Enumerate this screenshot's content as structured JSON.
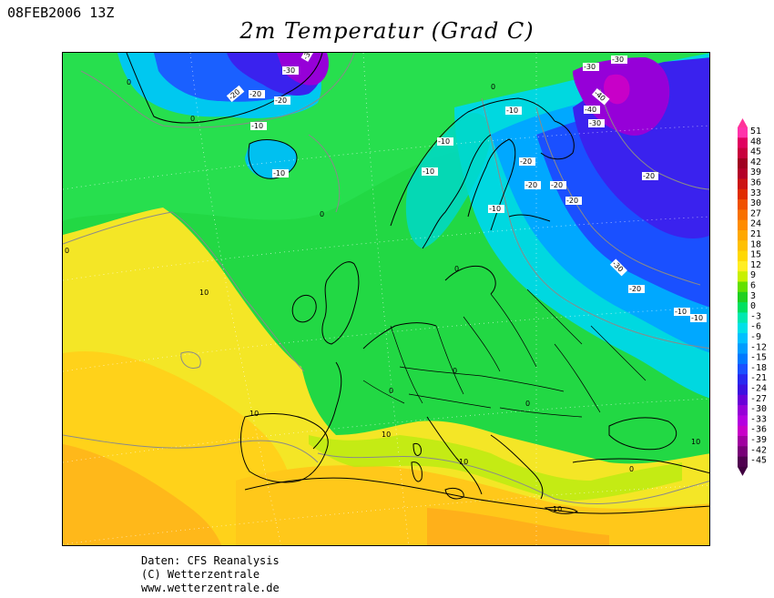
{
  "header": {
    "datestamp": "08FEB2006 13Z",
    "title": "2m Temperatur (Grad C)"
  },
  "credits": {
    "line1": "Daten: CFS Reanalysis",
    "line2": "(C) Wetterzentrale",
    "line3": "www.wetterzentrale.de"
  },
  "legend": {
    "levels": [
      {
        "label": "51",
        "color": "#ff33aa"
      },
      {
        "label": "48",
        "color": "#e0005e"
      },
      {
        "label": "45",
        "color": "#c8003c"
      },
      {
        "label": "42",
        "color": "#a00020"
      },
      {
        "label": "39",
        "color": "#b40028"
      },
      {
        "label": "36",
        "color": "#cc1414"
      },
      {
        "label": "33",
        "color": "#e02c00"
      },
      {
        "label": "30",
        "color": "#f05000"
      },
      {
        "label": "27",
        "color": "#f87000"
      },
      {
        "label": "24",
        "color": "#ff8c00"
      },
      {
        "label": "21",
        "color": "#ffa800"
      },
      {
        "label": "18",
        "color": "#ffc000"
      },
      {
        "label": "15",
        "color": "#ffd800"
      },
      {
        "label": "12",
        "color": "#ffee22"
      },
      {
        "label": "9",
        "color": "#c8f000"
      },
      {
        "label": "6",
        "color": "#64e000"
      },
      {
        "label": "3",
        "color": "#20d020"
      },
      {
        "label": "0",
        "color": "#00e060"
      },
      {
        "label": "-3",
        "color": "#00e8b0"
      },
      {
        "label": "-6",
        "color": "#00e0e8"
      },
      {
        "label": "-9",
        "color": "#00c0ff"
      },
      {
        "label": "-12",
        "color": "#009cff"
      },
      {
        "label": "-15",
        "color": "#0078ff"
      },
      {
        "label": "-18",
        "color": "#1a50ff"
      },
      {
        "label": "-21",
        "color": "#2828f0"
      },
      {
        "label": "-24",
        "color": "#3c10e0"
      },
      {
        "label": "-27",
        "color": "#6a00d8"
      },
      {
        "label": "-30",
        "color": "#9600d8"
      },
      {
        "label": "-33",
        "color": "#b400e0"
      },
      {
        "label": "-36",
        "color": "#c800c8"
      },
      {
        "label": "-39",
        "color": "#a000a0"
      },
      {
        "label": "-42",
        "color": "#780078"
      },
      {
        "label": "-45",
        "color": "#500050"
      }
    ],
    "top_color": "#ff3399",
    "bottom_color": "#400040"
  },
  "map": {
    "contour_labels": [
      {
        "text": "-30"
      },
      {
        "text": "-30"
      },
      {
        "text": "-20"
      },
      {
        "text": "-20"
      },
      {
        "text": "-20"
      },
      {
        "text": "-10"
      },
      {
        "text": "-10"
      },
      {
        "text": "-10"
      },
      {
        "text": "-10"
      },
      {
        "text": "-10"
      },
      {
        "text": "-30"
      },
      {
        "text": "-30"
      },
      {
        "text": "-40"
      },
      {
        "text": "-40"
      },
      {
        "text": "-30"
      },
      {
        "text": "-20"
      },
      {
        "text": "-20"
      },
      {
        "text": "-20"
      },
      {
        "text": "-20"
      },
      {
        "text": "-20"
      },
      {
        "text": "-10"
      },
      {
        "text": "-30"
      },
      {
        "text": "-20"
      },
      {
        "text": "-10"
      },
      {
        "text": "-10"
      },
      {
        "text": "0"
      },
      {
        "text": "0"
      },
      {
        "text": "0"
      },
      {
        "text": "0"
      },
      {
        "text": "0"
      },
      {
        "text": "0"
      },
      {
        "text": "10"
      },
      {
        "text": "10"
      },
      {
        "text": "10"
      },
      {
        "text": "10"
      },
      {
        "text": "10"
      },
      {
        "text": "10"
      },
      {
        "text": "0"
      },
      {
        "text": "0"
      },
      {
        "text": "0"
      },
      {
        "text": "0"
      }
    ]
  }
}
